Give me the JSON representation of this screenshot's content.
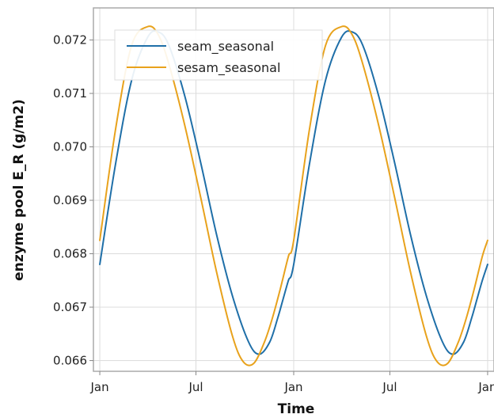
{
  "chart_data": {
    "type": "line",
    "title": "",
    "xlabel": "Time",
    "ylabel": "enzyme pool E_R (g/m2)",
    "x_tick_labels": [
      "Jan",
      "Jul",
      "Jan",
      "Jul",
      "Jan"
    ],
    "x_tick_values": [
      0,
      181,
      365,
      546,
      730
    ],
    "xlim": [
      -12,
      742
    ],
    "y_ticks": [
      0.066,
      0.067,
      0.068,
      0.069,
      0.07,
      0.071,
      0.072
    ],
    "y_tick_labels": [
      "0.066",
      "0.067",
      "0.068",
      "0.069",
      "0.070",
      "0.071",
      "0.072"
    ],
    "ylim": [
      0.0658,
      0.0726
    ],
    "grid": true,
    "legend_position": "top-left",
    "series": [
      {
        "name": "seam_seasonal",
        "color": "#1f6fa8",
        "x": [
          0,
          30,
          60,
          90,
          110,
          130,
          160,
          190,
          220,
          250,
          280,
          300,
          320,
          335,
          345,
          355,
          365,
          395,
          425,
          455,
          475,
          495,
          525,
          555,
          585,
          615,
          645,
          665,
          685,
          700,
          710,
          720,
          730
        ],
        "y": [
          0.0678,
          0.0697,
          0.07125,
          0.07205,
          0.07215,
          0.0719,
          0.07095,
          0.0697,
          0.06835,
          0.0672,
          0.06635,
          0.06612,
          0.06635,
          0.0668,
          0.06715,
          0.0675,
          0.0678,
          0.0697,
          0.07125,
          0.07205,
          0.07215,
          0.0719,
          0.07095,
          0.0697,
          0.06835,
          0.0672,
          0.06635,
          0.06612,
          0.06635,
          0.0668,
          0.06715,
          0.0675,
          0.0678
        ]
      },
      {
        "name": "sesam_seasonal",
        "color": "#e8a21c",
        "x": [
          0,
          30,
          60,
          90,
          110,
          130,
          160,
          190,
          220,
          250,
          270,
          290,
          310,
          325,
          340,
          355,
          365,
          395,
          425,
          455,
          475,
          495,
          525,
          555,
          585,
          615,
          635,
          655,
          675,
          690,
          705,
          720,
          730
        ],
        "y": [
          0.06825,
          0.07035,
          0.0719,
          0.07225,
          0.0721,
          0.07155,
          0.0704,
          0.06905,
          0.06765,
          0.06645,
          0.06598,
          0.06595,
          0.06635,
          0.0668,
          0.06735,
          0.06795,
          0.06825,
          0.07035,
          0.0719,
          0.07225,
          0.0721,
          0.07155,
          0.0704,
          0.06905,
          0.06765,
          0.06645,
          0.06598,
          0.06595,
          0.06635,
          0.0668,
          0.06735,
          0.06795,
          0.06825
        ]
      }
    ]
  }
}
